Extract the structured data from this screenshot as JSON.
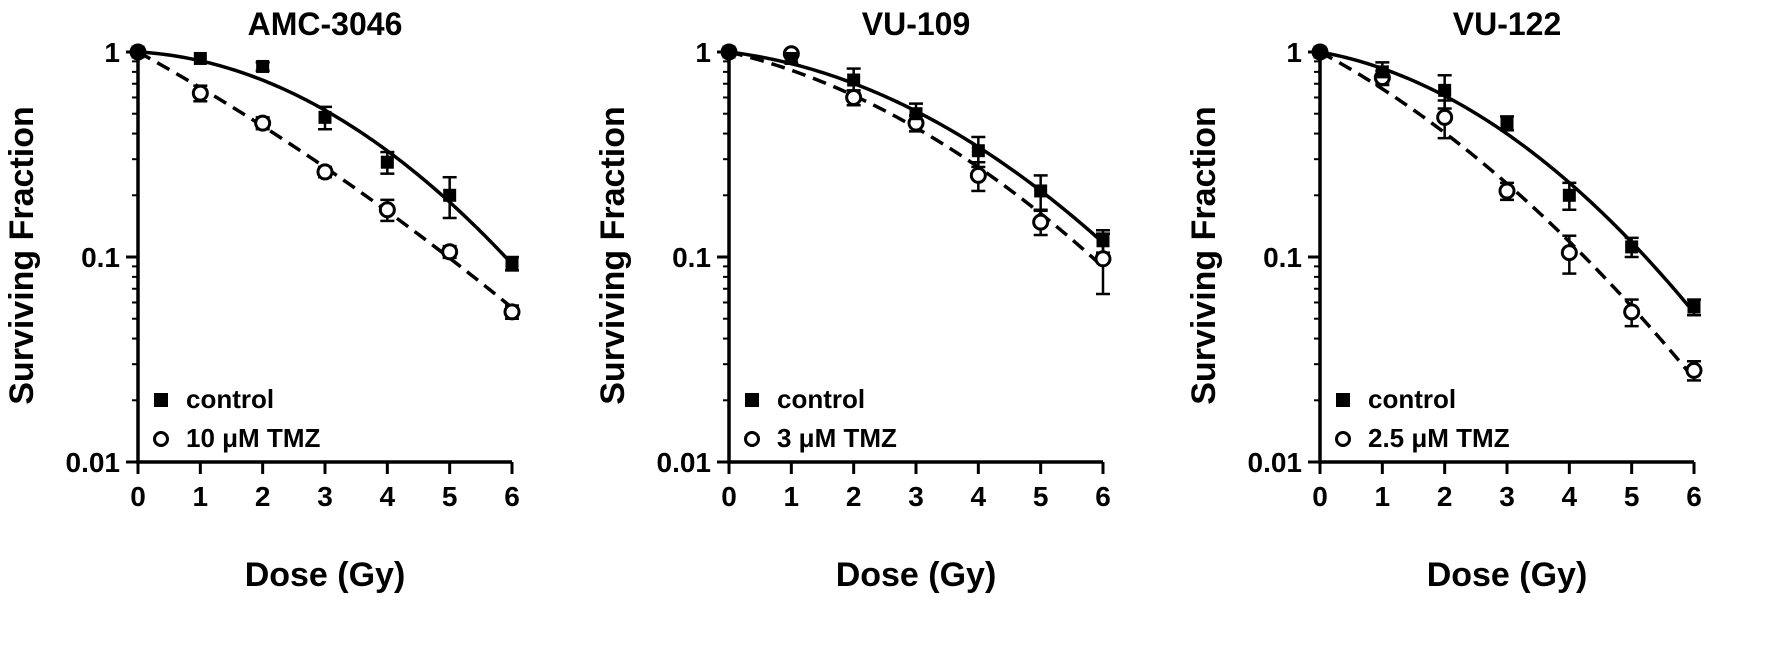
{
  "style": {
    "ink": "#000000",
    "background": "#ffffff"
  },
  "figure": {
    "description": "Clonogenic survival curves, three cell lines, control vs temozolomide",
    "panel_count": 3
  },
  "chart_data": [
    {
      "type": "line",
      "title": "AMC-3046",
      "xlabel": "Dose (Gy)",
      "ylabel": "Surviving Fraction",
      "x_axis": {
        "min": 0,
        "max": 6,
        "ticks": [
          0,
          1,
          2,
          3,
          4,
          5,
          6
        ]
      },
      "y_axis": {
        "scale": "log",
        "min": 0.01,
        "max": 1,
        "tick_values": [
          1,
          0.1,
          0.01
        ],
        "tick_labels": [
          "1",
          "0.1",
          "0.01"
        ]
      },
      "doses_gy": [
        0,
        1,
        2,
        3,
        4,
        5,
        6
      ],
      "legend_position": "bottom-left",
      "series": [
        {
          "name": "control",
          "marker": "filled-square",
          "line": "solid",
          "surviving_fraction": [
            1.0,
            0.93,
            0.85,
            0.48,
            0.29,
            0.2,
            0.093
          ],
          "error": [
            0,
            0,
            0.04,
            0.06,
            0.035,
            0.045,
            0.007
          ]
        },
        {
          "name": "10 μM TMZ",
          "marker": "open-circle",
          "line": "dashed",
          "surviving_fraction": [
            1.0,
            0.63,
            0.45,
            0.26,
            0.17,
            0.106,
            0.054
          ],
          "error": [
            0,
            0.055,
            0.03,
            0.015,
            0.02,
            0.007,
            0.004
          ]
        }
      ]
    },
    {
      "type": "line",
      "title": "VU-109",
      "xlabel": "Dose (Gy)",
      "ylabel": "Surviving Fraction",
      "x_axis": {
        "min": 0,
        "max": 6,
        "ticks": [
          0,
          1,
          2,
          3,
          4,
          5,
          6
        ]
      },
      "y_axis": {
        "scale": "log",
        "min": 0.01,
        "max": 1,
        "tick_values": [
          1,
          0.1,
          0.01
        ],
        "tick_labels": [
          "1",
          "0.1",
          "0.01"
        ]
      },
      "doses_gy": [
        0,
        1,
        2,
        3,
        4,
        5,
        6
      ],
      "legend_position": "bottom-left",
      "series": [
        {
          "name": "control",
          "marker": "filled-square",
          "line": "solid",
          "surviving_fraction": [
            1.0,
            0.93,
            0.73,
            0.5,
            0.33,
            0.21,
            0.12
          ],
          "error": [
            0,
            0.05,
            0.1,
            0.06,
            0.055,
            0.04,
            0.015
          ]
        },
        {
          "name": "3 μM TMZ",
          "marker": "open-circle",
          "line": "dashed",
          "surviving_fraction": [
            1.0,
            0.98,
            0.6,
            0.45,
            0.25,
            0.148,
            0.098
          ],
          "error": [
            0,
            0.04,
            0.05,
            0.04,
            0.04,
            0.02,
            0.032
          ]
        }
      ]
    },
    {
      "type": "line",
      "title": "VU-122",
      "xlabel": "Dose (Gy)",
      "ylabel": "Surviving Fraction",
      "x_axis": {
        "min": 0,
        "max": 6,
        "ticks": [
          0,
          1,
          2,
          3,
          4,
          5,
          6
        ]
      },
      "y_axis": {
        "scale": "log",
        "min": 0.01,
        "max": 1,
        "tick_values": [
          1,
          0.1,
          0.01
        ],
        "tick_labels": [
          "1",
          "0.1",
          "0.01"
        ]
      },
      "doses_gy": [
        0,
        1,
        2,
        3,
        4,
        5,
        6
      ],
      "legend_position": "bottom-left",
      "series": [
        {
          "name": "control",
          "marker": "filled-square",
          "line": "solid",
          "surviving_fraction": [
            1.0,
            0.8,
            0.65,
            0.45,
            0.2,
            0.112,
            0.057
          ],
          "error": [
            0,
            0.09,
            0.12,
            0.035,
            0.03,
            0.012,
            0.005
          ]
        },
        {
          "name": "2.5 μM TMZ",
          "marker": "open-circle",
          "line": "dashed",
          "surviving_fraction": [
            1.0,
            0.75,
            0.48,
            0.21,
            0.105,
            0.054,
            0.028
          ],
          "error": [
            0,
            0.06,
            0.1,
            0.02,
            0.022,
            0.008,
            0.003
          ]
        }
      ]
    }
  ]
}
